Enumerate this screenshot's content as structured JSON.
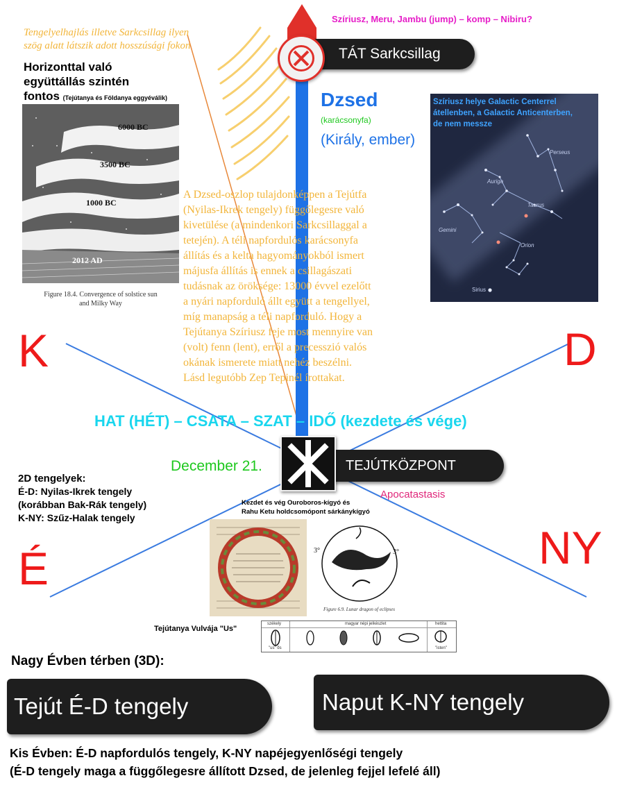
{
  "header": {
    "top_magenta": "Szíriusz, Meru, Jambu (jump) – komp – Nibiru?",
    "tilt_note_line1": "Tengelyelhajlás illetve Sarkcsillag ilyen",
    "tilt_note_line2": "szög alatt látszik adott hosszúsági fokon",
    "horizontal_line1": "Horizonttal való",
    "horizontal_line2": "együttállás szintén",
    "horizontal_line3": "fontos",
    "horizontal_small": "(Tejútanya és Földanya eggyéválik)"
  },
  "polestar": {
    "label": "TÁT Sarkcsillag",
    "icon": "x-circle-icon"
  },
  "dzsed": {
    "title": "Dzsed",
    "sub1": "(karácsonyfa)",
    "sub2": "(Király, ember)"
  },
  "sirius_caption": {
    "line1": "Szíriusz helye Galactic Centerrel",
    "line2": "átellenben, a Galactic Anticenterben,",
    "line3": "de nem messze"
  },
  "constellations": {
    "perseus": "Perseus",
    "auriga": "Auriga",
    "taurus": "Taurus",
    "gemini": "Gemini",
    "orion": "Orion",
    "sirius": "Sirius"
  },
  "milkyway_figure": {
    "label_6000": "6000 BC",
    "label_3500": "3500 BC",
    "label_1000": "1000 BC",
    "label_2012": "2012 AD",
    "caption_line1": "Figure 18.4. Convergence of solstice sun",
    "caption_line2": "and Milky Way"
  },
  "main_text": [
    "A Dzsed-oszlop tulajdonképpen a Tejútfa",
    "(Nyilas-Ikrek tengely) függőlegesre való",
    "kivetülése (a mindenkori Sarkcsillaggal a",
    "tetején). A téli napfordulós karácsonyfa",
    "állítás és a kelta hagyományokból ismert",
    "májusfa állítás is ennek a csillagászati",
    "tudásnak az öröksége: 13000 évvel ezelőtt",
    "a nyári napforduló állt együtt a tengellyel,",
    "míg manapság a téli napforduló. Hogy a",
    "Tejútanya Szíriusz feje most mennyire van",
    "(volt) fenn (lent), erről a precesszió valós",
    "okának ismerete miatt nehéz beszélni.",
    "Lásd legutóbb Zep Tepinél írottakat."
  ],
  "directions": {
    "north_left": "K",
    "east_right": "D",
    "south_left": "É",
    "west_right": "NY"
  },
  "hat_line": "HAT (HÉT) – CSATA – SZAT – IDŐ (kezdete és vége)",
  "center": {
    "date": "December 21.",
    "label": "TEJÚTKÖZPONT",
    "apocatastasis": "Apocatastasis",
    "icon": "asterisk-cross-icon"
  },
  "axes_2d": {
    "title": "2D tengelyek:",
    "line1": "É-D: Nyilas-Ikrek tengely",
    "line2": "(korábban Bak-Rák tengely)",
    "line3": "K-NY: Szűz-Halak tengely"
  },
  "ouroboros": {
    "caption_line1": "Kezdet és vég Ouroboros-kígyó és",
    "caption_line2": "Rahu Ketu holdcsomópont sárkánykígyó",
    "dragon_caption": "Figure 6.9. Lunar dragon of eclipses",
    "deg_left": "3°",
    "deg_right": "3°"
  },
  "vulva": {
    "label": "Tejútanya Vulvája \"Us\"",
    "col1": "székely",
    "col2": "magyar népi jelkészlet",
    "col3": "hettita",
    "cell1": "\"us\" ős",
    "cell_last": "\"isten\""
  },
  "bottom": {
    "nagy_ev": "Nagy Évben térben (3D):",
    "pill_left": "Tejút É-D tengely",
    "pill_right": "Naput K-NY tengely",
    "kis_ev_line1": "Kis Évben: É-D napfordulós tengely, K-NY napéjegyenlőségi tengely",
    "kis_ev_line2": "(É-D tengely maga a függőlegesre állított Dzsed, de jelenleg fejjel lefelé áll)"
  },
  "colors": {
    "magenta": "#e61ec8",
    "orange_text": "#f2b53a",
    "red": "#ee1a1a",
    "blue_axis": "#1e72e6",
    "cyan": "#19d6ee",
    "green": "#1ec81e",
    "dark_pill": "#1e1e1e",
    "pink": "#e0267a"
  }
}
